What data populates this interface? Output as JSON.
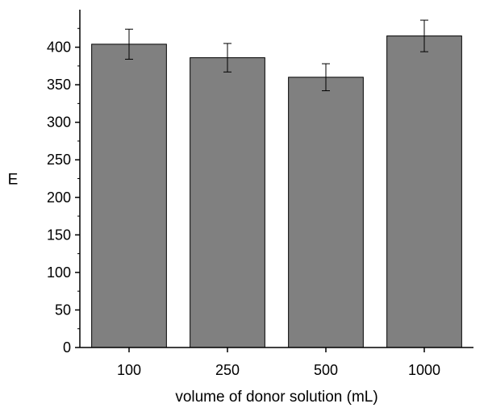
{
  "chart_data": {
    "type": "bar",
    "title": "",
    "xlabel": "volume of donor solution (mL)",
    "ylabel": "E",
    "categories": [
      "100",
      "250",
      "500",
      "1000"
    ],
    "values": [
      404,
      386,
      360,
      415
    ],
    "error": [
      20,
      19,
      18,
      21
    ],
    "ylim": [
      0,
      450
    ],
    "yticks": [
      0,
      50,
      100,
      150,
      200,
      250,
      300,
      350,
      400
    ],
    "grid": false,
    "colors": {
      "bar_fill": "#808080",
      "bar_stroke": "#000000",
      "axis": "#000000"
    }
  }
}
